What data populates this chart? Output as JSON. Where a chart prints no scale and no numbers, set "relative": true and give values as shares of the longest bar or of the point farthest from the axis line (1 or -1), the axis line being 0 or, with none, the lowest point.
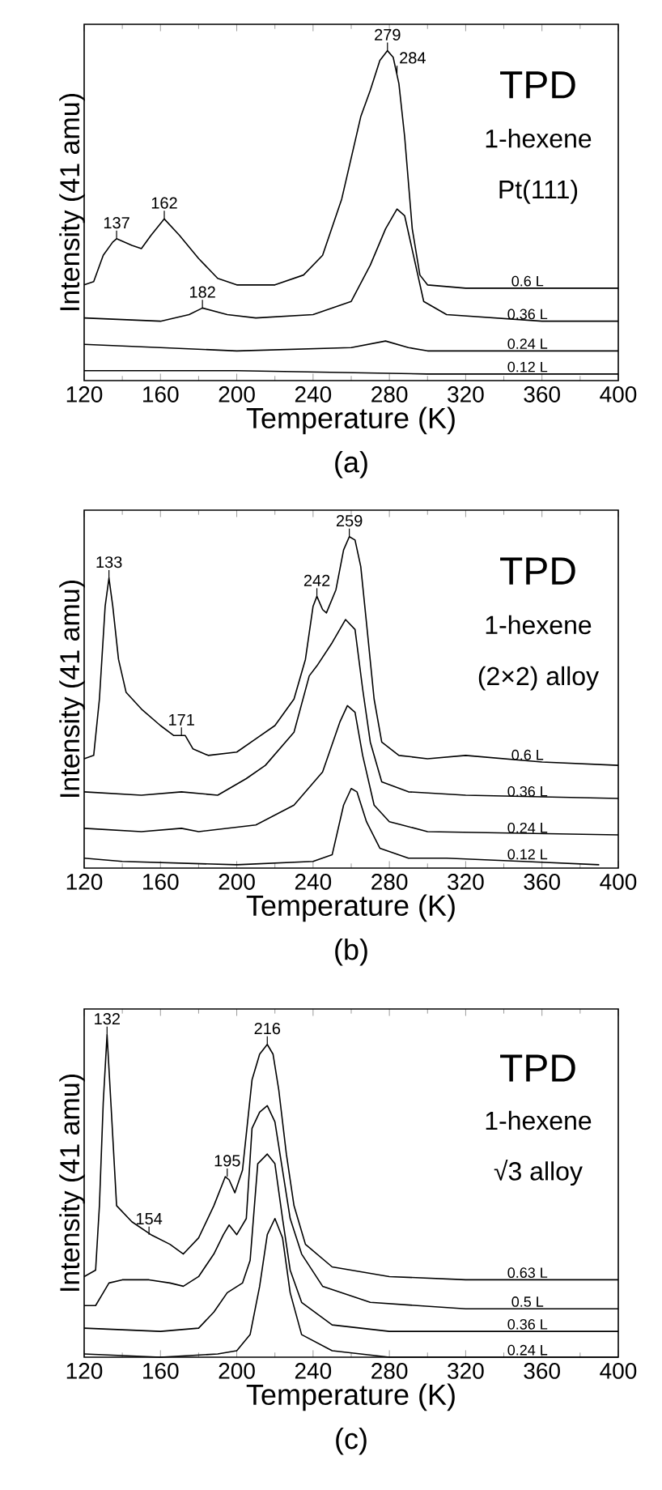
{
  "chart_data": [
    {
      "type": "line",
      "title": "(a)",
      "xlabel": "Temperature (K)",
      "ylabel": "Intensity (41 amu)",
      "relative": true,
      "xlim": [
        120,
        400
      ],
      "xticks": [
        120,
        160,
        200,
        240,
        280,
        320,
        360,
        400
      ],
      "annotations": [
        "TPD",
        "1-hexene",
        "Pt(111)",
        {
          "text": "137",
          "x": 137,
          "y": 0.43
        },
        {
          "text": "162",
          "x": 162,
          "y": 0.49
        },
        {
          "text": "182",
          "x": 182,
          "y": 0.22
        },
        {
          "text": "279",
          "x": 279,
          "y": 1.0
        },
        {
          "text": "284",
          "x": 284,
          "y": 0.93
        }
      ],
      "series": [
        {
          "name": "0.6 L",
          "color": "#000000",
          "x": [
            120,
            125,
            130,
            135,
            137,
            145,
            150,
            155,
            162,
            170,
            180,
            190,
            200,
            220,
            235,
            245,
            255,
            265,
            270,
            275,
            279,
            282,
            285,
            288,
            292,
            296,
            300,
            320,
            360,
            400
          ],
          "values": [
            0.29,
            0.3,
            0.38,
            0.42,
            0.43,
            0.41,
            0.4,
            0.44,
            0.49,
            0.44,
            0.37,
            0.31,
            0.29,
            0.29,
            0.32,
            0.38,
            0.55,
            0.8,
            0.88,
            0.97,
            1.0,
            0.98,
            0.9,
            0.74,
            0.46,
            0.32,
            0.29,
            0.28,
            0.28,
            0.28
          ]
        },
        {
          "name": "0.36 L",
          "color": "#000000",
          "x": [
            120,
            160,
            175,
            182,
            195,
            210,
            240,
            260,
            270,
            278,
            284,
            288,
            293,
            298,
            310,
            360,
            400
          ],
          "values": [
            0.19,
            0.18,
            0.2,
            0.22,
            0.2,
            0.19,
            0.2,
            0.24,
            0.35,
            0.46,
            0.52,
            0.5,
            0.37,
            0.24,
            0.2,
            0.18,
            0.18
          ]
        },
        {
          "name": "0.24 L",
          "color": "#000000",
          "x": [
            120,
            160,
            200,
            260,
            278,
            290,
            300,
            400
          ],
          "values": [
            0.11,
            0.1,
            0.09,
            0.1,
            0.12,
            0.1,
            0.09,
            0.09
          ]
        },
        {
          "name": "0.12 L",
          "color": "#000000",
          "x": [
            120,
            200,
            300,
            400
          ],
          "values": [
            0.03,
            0.03,
            0.02,
            0.02
          ]
        }
      ]
    },
    {
      "type": "line",
      "title": "(b)",
      "xlabel": "Temperature (K)",
      "ylabel": "Intensity (41 amu)",
      "relative": true,
      "xlim": [
        120,
        400
      ],
      "xticks": [
        120,
        160,
        200,
        240,
        280,
        320,
        360,
        400
      ],
      "annotations": [
        "TPD",
        "1-hexene",
        "(2×2) alloy",
        {
          "text": "133",
          "x": 133,
          "y": 0.875
        },
        {
          "text": "171",
          "x": 171,
          "y": 0.4
        },
        {
          "text": "242",
          "x": 242,
          "y": 0.82
        },
        {
          "text": "259",
          "x": 259,
          "y": 1.0
        }
      ],
      "series": [
        {
          "name": "0.6 L",
          "color": "#000000",
          "x": [
            120,
            125,
            128,
            131,
            133,
            135,
            138,
            142,
            150,
            160,
            167,
            173,
            177,
            185,
            200,
            210,
            220,
            230,
            236,
            240,
            242,
            245,
            247,
            252,
            256,
            259,
            262,
            265,
            268,
            272,
            276,
            285,
            300,
            320,
            360,
            400
          ],
          "values": [
            0.33,
            0.34,
            0.51,
            0.79,
            0.875,
            0.79,
            0.63,
            0.53,
            0.48,
            0.43,
            0.4,
            0.4,
            0.36,
            0.34,
            0.35,
            0.39,
            0.43,
            0.51,
            0.63,
            0.79,
            0.82,
            0.78,
            0.77,
            0.84,
            0.96,
            1.0,
            0.99,
            0.91,
            0.74,
            0.51,
            0.38,
            0.34,
            0.33,
            0.34,
            0.32,
            0.31
          ]
        },
        {
          "name": "0.36 L",
          "color": "#000000",
          "x": [
            120,
            150,
            171,
            190,
            205,
            215,
            230,
            238,
            242,
            250,
            257,
            262,
            266,
            270,
            276,
            290,
            320,
            400
          ],
          "values": [
            0.23,
            0.22,
            0.23,
            0.22,
            0.27,
            0.31,
            0.41,
            0.58,
            0.61,
            0.68,
            0.75,
            0.72,
            0.54,
            0.38,
            0.26,
            0.23,
            0.22,
            0.21
          ]
        },
        {
          "name": "0.24 L",
          "color": "#000000",
          "x": [
            120,
            150,
            171,
            180,
            210,
            230,
            245,
            254,
            258,
            262,
            266,
            272,
            280,
            300,
            400
          ],
          "values": [
            0.12,
            0.11,
            0.12,
            0.11,
            0.13,
            0.19,
            0.29,
            0.44,
            0.49,
            0.47,
            0.34,
            0.19,
            0.14,
            0.11,
            0.1
          ]
        },
        {
          "name": "0.12 L",
          "color": "#000000",
          "x": [
            120,
            140,
            200,
            240,
            250,
            256,
            260,
            263,
            268,
            275,
            290,
            310,
            350,
            390
          ],
          "values": [
            0.03,
            0.02,
            0.01,
            0.02,
            0.04,
            0.19,
            0.24,
            0.23,
            0.14,
            0.06,
            0.03,
            0.03,
            0.02,
            0.01
          ]
        }
      ]
    },
    {
      "type": "line",
      "title": "(c)",
      "xlabel": "Temperature (K)",
      "ylabel": "Intensity (41 amu)",
      "relative": true,
      "xlim": [
        120,
        400
      ],
      "xticks": [
        120,
        160,
        200,
        240,
        280,
        320,
        360,
        400
      ],
      "annotations": [
        "TPD",
        "1-hexene",
        "√3 alloy",
        {
          "text": "132",
          "x": 132,
          "y": 1.0
        },
        {
          "text": "154",
          "x": 154,
          "y": 0.38
        },
        {
          "text": "195",
          "x": 195,
          "y": 0.56
        },
        {
          "text": "216",
          "x": 216,
          "y": 0.97
        }
      ],
      "series": [
        {
          "name": "0.63 L",
          "color": "#000000",
          "x": [
            120,
            126,
            128,
            130,
            132,
            134,
            137,
            145,
            155,
            165,
            172,
            180,
            188,
            194,
            196,
            199,
            203,
            208,
            212,
            216,
            219,
            222,
            226,
            230,
            236,
            250,
            280,
            320,
            400
          ],
          "values": [
            0.25,
            0.27,
            0.47,
            0.79,
            1.0,
            0.79,
            0.47,
            0.42,
            0.38,
            0.35,
            0.32,
            0.37,
            0.47,
            0.56,
            0.55,
            0.51,
            0.58,
            0.86,
            0.94,
            0.97,
            0.94,
            0.83,
            0.63,
            0.47,
            0.35,
            0.28,
            0.25,
            0.24,
            0.24
          ]
        },
        {
          "name": "0.5 L",
          "color": "#000000",
          "x": [
            120,
            126,
            130,
            133,
            140,
            154,
            165,
            172,
            180,
            188,
            193,
            196,
            200,
            205,
            208,
            212,
            216,
            220,
            224,
            228,
            234,
            245,
            270,
            320,
            400
          ],
          "values": [
            0.16,
            0.16,
            0.2,
            0.23,
            0.24,
            0.24,
            0.23,
            0.22,
            0.25,
            0.32,
            0.38,
            0.41,
            0.38,
            0.43,
            0.71,
            0.76,
            0.78,
            0.73,
            0.58,
            0.43,
            0.32,
            0.22,
            0.17,
            0.15,
            0.15
          ]
        },
        {
          "name": "0.36 L",
          "color": "#000000",
          "x": [
            120,
            160,
            180,
            188,
            195,
            203,
            207,
            211,
            216,
            220,
            224,
            228,
            234,
            250,
            280,
            400
          ],
          "values": [
            0.09,
            0.08,
            0.09,
            0.14,
            0.2,
            0.23,
            0.3,
            0.6,
            0.63,
            0.6,
            0.43,
            0.27,
            0.17,
            0.1,
            0.08,
            0.08
          ]
        },
        {
          "name": "0.24 L",
          "color": "#000000",
          "x": [
            120,
            160,
            190,
            200,
            207,
            212,
            216,
            220,
            224,
            228,
            234,
            250,
            280,
            400
          ],
          "values": [
            0.01,
            0.0,
            0.01,
            0.02,
            0.07,
            0.22,
            0.38,
            0.43,
            0.37,
            0.2,
            0.07,
            0.02,
            0.0,
            0.0
          ]
        }
      ]
    }
  ]
}
